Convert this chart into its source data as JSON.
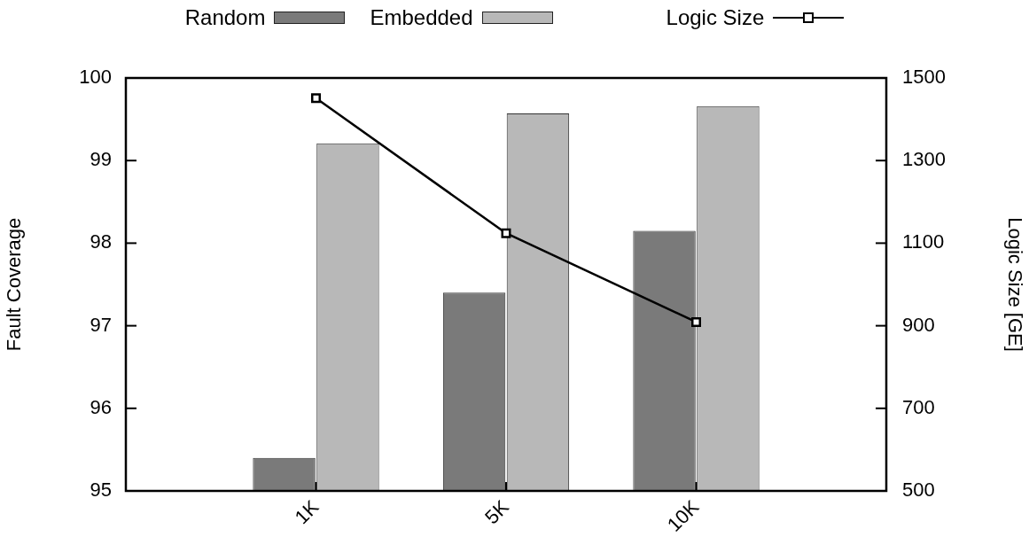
{
  "chart_data": {
    "type": "bar",
    "ylabel": "Fault Coverage",
    "y2label": "Logic Size [GE]",
    "categories": [
      null,
      "1K",
      "5K",
      "10K",
      null
    ],
    "series": [
      {
        "name": "Random",
        "color": "#7a7a7a",
        "values": [
          null,
          95.4,
          97.4,
          98.15,
          null
        ]
      },
      {
        "name": "Embedded",
        "color": "#b8b8b8",
        "values": [
          null,
          99.21,
          99.57,
          99.66,
          null
        ]
      },
      {
        "name": "Logic Size",
        "type": "line",
        "axis": "y2",
        "color": "#000000",
        "marker": "square",
        "values": [
          null,
          1451,
          1124,
          909,
          null
        ]
      }
    ],
    "ylim": [
      95,
      100
    ],
    "yticks": [
      95,
      96,
      97,
      98,
      99,
      100
    ],
    "y2lim": [
      500,
      1500
    ],
    "y2ticks": [
      500,
      700,
      900,
      1100,
      1300,
      1500
    ],
    "grid": false,
    "legend": "top"
  }
}
